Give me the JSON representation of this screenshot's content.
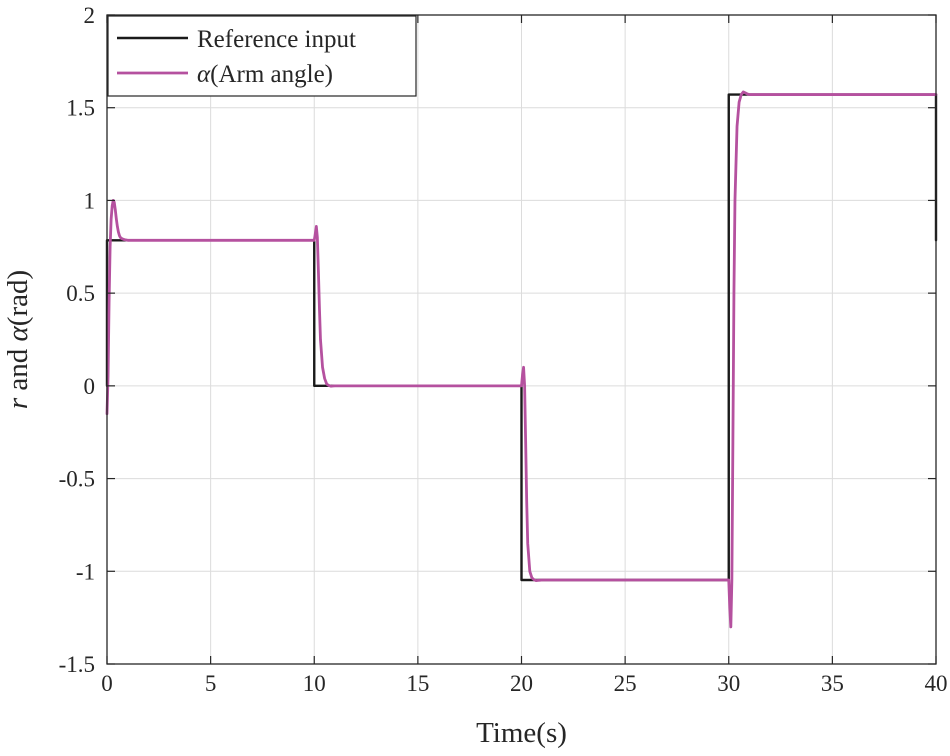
{
  "chart_data": {
    "type": "line",
    "xlabel": "Time(s)",
    "ylabel": {
      "parts": [
        {
          "text": "r",
          "italic": true
        },
        {
          "text": " and ",
          "italic": false
        },
        {
          "text": "α",
          "italic": true
        },
        {
          "text": "(rad)",
          "italic": false
        }
      ]
    },
    "xlim": [
      0,
      40
    ],
    "ylim": [
      -1.5,
      2
    ],
    "xticks": [
      0,
      5,
      10,
      15,
      20,
      25,
      30,
      35,
      40
    ],
    "xtick_labels": [
      "0",
      "5",
      "10",
      "15",
      "20",
      "25",
      "30",
      "35",
      "40"
    ],
    "yticks": [
      -1.5,
      -1,
      -0.5,
      0,
      0.5,
      1,
      1.5,
      2
    ],
    "ytick_labels": [
      "-1.5",
      "-1",
      "-0.5",
      "0",
      "0.5",
      "1",
      "1.5",
      "2"
    ],
    "grid": true,
    "legend_placement": "top-left",
    "series": [
      {
        "name": "Reference input",
        "legend_parts": [
          {
            "text": "Reference input",
            "italic": false
          }
        ],
        "color": "#1a1a1a",
        "x": [
          0,
          0,
          10,
          10,
          20,
          20,
          30,
          30,
          40,
          40
        ],
        "y": [
          0,
          0.785,
          0.785,
          0,
          0,
          -1.047,
          -1.047,
          1.571,
          1.571,
          0.785
        ]
      },
      {
        "name": "α(Arm angle)",
        "legend_parts": [
          {
            "text": "α",
            "italic": true
          },
          {
            "text": "(Arm angle)",
            "italic": false
          }
        ],
        "color": "#b5519f",
        "x": [
          0,
          0.05,
          0.1,
          0.15,
          0.2,
          0.25,
          0.3,
          0.35,
          0.4,
          0.45,
          0.5,
          0.55,
          0.6,
          0.65,
          0.7,
          0.8,
          0.9,
          1.0,
          1.2,
          1.5,
          2.0,
          10.0,
          10.05,
          10.1,
          10.15,
          10.2,
          10.25,
          10.3,
          10.4,
          10.5,
          10.6,
          10.7,
          10.8,
          10.9,
          11.0,
          11.2,
          11.5,
          12.0,
          20.0,
          20.05,
          20.1,
          20.15,
          20.2,
          20.25,
          20.3,
          20.4,
          20.5,
          20.6,
          20.7,
          20.8,
          20.9,
          21.0,
          21.2,
          21.5,
          22.0,
          30.0,
          30.05,
          30.1,
          30.15,
          30.2,
          30.25,
          30.3,
          30.4,
          30.5,
          30.6,
          30.7,
          30.8,
          30.9,
          31.0,
          31.2,
          31.5,
          32.0,
          40.0
        ],
        "y": [
          -0.15,
          0.05,
          0.45,
          0.75,
          0.9,
          0.97,
          1.0,
          0.99,
          0.95,
          0.9,
          0.86,
          0.83,
          0.81,
          0.8,
          0.795,
          0.79,
          0.787,
          0.785,
          0.785,
          0.785,
          0.785,
          0.785,
          0.82,
          0.86,
          0.8,
          0.62,
          0.42,
          0.25,
          0.1,
          0.04,
          0.01,
          0.002,
          -0.002,
          -0.001,
          0.0,
          0.0,
          0.0,
          0.0,
          0.0,
          0.06,
          0.1,
          0.0,
          -0.3,
          -0.62,
          -0.85,
          -1.0,
          -1.035,
          -1.045,
          -1.05,
          -1.049,
          -1.048,
          -1.047,
          -1.047,
          -1.047,
          -1.047,
          -1.047,
          -1.2,
          -1.3,
          -1.05,
          -0.3,
          0.5,
          1.0,
          1.4,
          1.53,
          1.57,
          1.585,
          1.58,
          1.574,
          1.571,
          1.571,
          1.571,
          1.571,
          1.571
        ]
      }
    ]
  }
}
